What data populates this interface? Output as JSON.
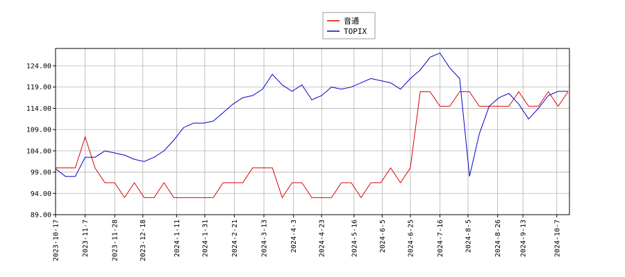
{
  "chart_data": {
    "type": "line",
    "x": [
      "2023-10-17",
      "2023-10-24",
      "2023-10-31",
      "2023-11-07",
      "2023-11-14",
      "2023-11-21",
      "2023-11-28",
      "2023-12-05",
      "2023-12-12",
      "2023-12-19",
      "2023-12-26",
      "2024-01-02",
      "2024-01-09",
      "2024-01-16",
      "2024-01-23",
      "2024-01-30",
      "2024-02-06",
      "2024-02-13",
      "2024-02-20",
      "2024-02-27",
      "2024-03-05",
      "2024-03-12",
      "2024-03-19",
      "2024-03-26",
      "2024-04-02",
      "2024-04-09",
      "2024-04-16",
      "2024-04-23",
      "2024-04-30",
      "2024-05-07",
      "2024-05-14",
      "2024-05-21",
      "2024-05-28",
      "2024-06-04",
      "2024-06-11",
      "2024-06-18",
      "2024-06-25",
      "2024-07-02",
      "2024-07-09",
      "2024-07-16",
      "2024-07-23",
      "2024-07-30",
      "2024-08-06",
      "2024-08-13",
      "2024-08-20",
      "2024-08-27",
      "2024-09-03",
      "2024-09-10",
      "2024-09-17",
      "2024-09-24",
      "2024-10-01",
      "2024-10-08",
      "2024-10-15"
    ],
    "series": [
      {
        "name": "音通",
        "color": "#dd0000",
        "values": [
          100,
          100,
          100,
          107.3,
          100,
          96.5,
          96.5,
          93,
          96.5,
          93,
          93,
          96.5,
          93,
          93,
          93,
          93,
          93,
          96.5,
          96.5,
          96.5,
          100,
          100,
          100,
          93,
          96.5,
          96.5,
          93,
          93,
          93,
          96.5,
          96.5,
          93,
          96.5,
          96.5,
          100,
          96.5,
          100,
          117.9,
          117.9,
          114.5,
          114.5,
          117.9,
          117.9,
          114.5,
          114.5,
          114.5,
          114.5,
          117.9,
          114.5,
          114.5,
          117.9,
          114.5,
          117.9
        ]
      },
      {
        "name": "TOPIX",
        "color": "#0000cc",
        "values": [
          99.8,
          98,
          98,
          102.5,
          102.5,
          104,
          103.5,
          103,
          102,
          101.5,
          102.5,
          104,
          106.5,
          109.5,
          110.5,
          110.5,
          111,
          113,
          115,
          116.5,
          117,
          118.5,
          122,
          119.5,
          118,
          119.5,
          116,
          117,
          119,
          118.5,
          119,
          120,
          121,
          120.5,
          120,
          118.5,
          121,
          123,
          126,
          127,
          123.5,
          121,
          98,
          108,
          114.5,
          116.5,
          117.5,
          115,
          111.5,
          114,
          117,
          118,
          118
        ]
      }
    ],
    "xlim": [
      "2023-10-17",
      "2024-10-16"
    ],
    "xticks": [
      "2023-10-17",
      "2023-11-7",
      "2023-11-28",
      "2023-12-18",
      "2024-1-11",
      "2024-1-31",
      "2024-2-21",
      "2024-3-13",
      "2024-4-3",
      "2024-4-23",
      "2024-5-16",
      "2024-6-5",
      "2024-6-25",
      "2024-7-16",
      "2024-8-5",
      "2024-8-26",
      "2024-9-13",
      "2024-10-7"
    ],
    "ylim": [
      89,
      128.07
    ],
    "yticks": [
      {
        "value": 89,
        "label": "89.00"
      },
      {
        "value": 94,
        "label": "94.00"
      },
      {
        "value": 99,
        "label": "99.00"
      },
      {
        "value": 104,
        "label": "104.00"
      },
      {
        "value": 109,
        "label": "109.00"
      },
      {
        "value": 114,
        "label": "114.00"
      },
      {
        "value": 119,
        "label": "119.00"
      },
      {
        "value": 124,
        "label": "124.00"
      }
    ],
    "grid": true
  }
}
